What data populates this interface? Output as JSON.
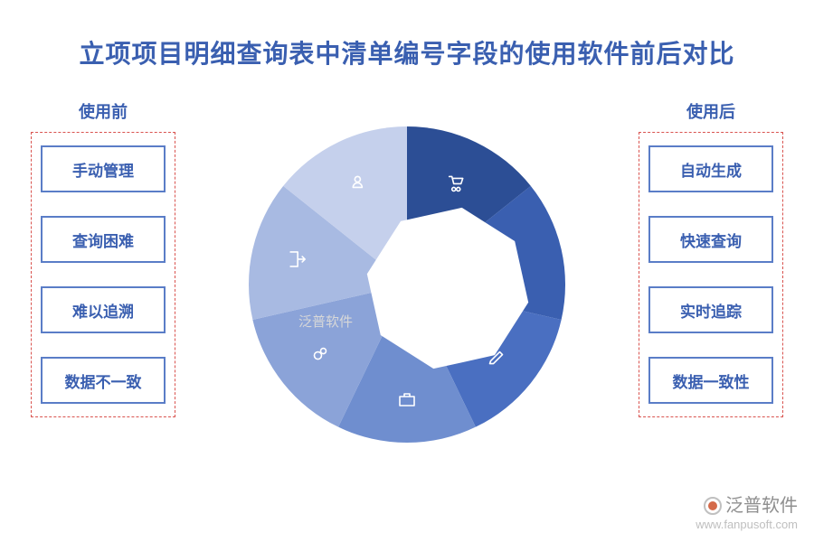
{
  "title": {
    "text": "立项项目明细查询表中清单编号字段的使用软件前后对比",
    "color": "#3a5fb0",
    "fontsize": 28
  },
  "before": {
    "header": "使用前",
    "header_color": "#3a5fb0",
    "border_color": "#d9534f",
    "item_border_color": "#5a7dc7",
    "item_text_color": "#3a5fb0",
    "items": [
      "手动管理",
      "查询困难",
      "难以追溯",
      "数据不一致"
    ]
  },
  "after": {
    "header": "使用后",
    "header_color": "#3a5fb0",
    "border_color": "#d9534f",
    "item_border_color": "#5a7dc7",
    "item_text_color": "#3a5fb0",
    "items": [
      "自动生成",
      "快速查询",
      "实时追踪",
      "数据一致性"
    ]
  },
  "pie": {
    "type": "pie",
    "slices": 7,
    "colors": [
      "#2c4e95",
      "#3a5fb0",
      "#4a6fc1",
      "#6f8ecf",
      "#8ba3d8",
      "#a8bae2",
      "#c5d0ec"
    ],
    "inner_shape_fill": "#ffffff",
    "icons": [
      "cart",
      "polygon",
      "pencil",
      "briefcase",
      "gears",
      "exit",
      "person"
    ],
    "icon_color": "#ffffff",
    "diameter": 360,
    "inner_radius_ratio": 0.45
  },
  "watermark": {
    "brand": "泛普软件",
    "url": "www.fanpusoft.com",
    "color": "#bfbfbf"
  },
  "background_color": "#ffffff"
}
